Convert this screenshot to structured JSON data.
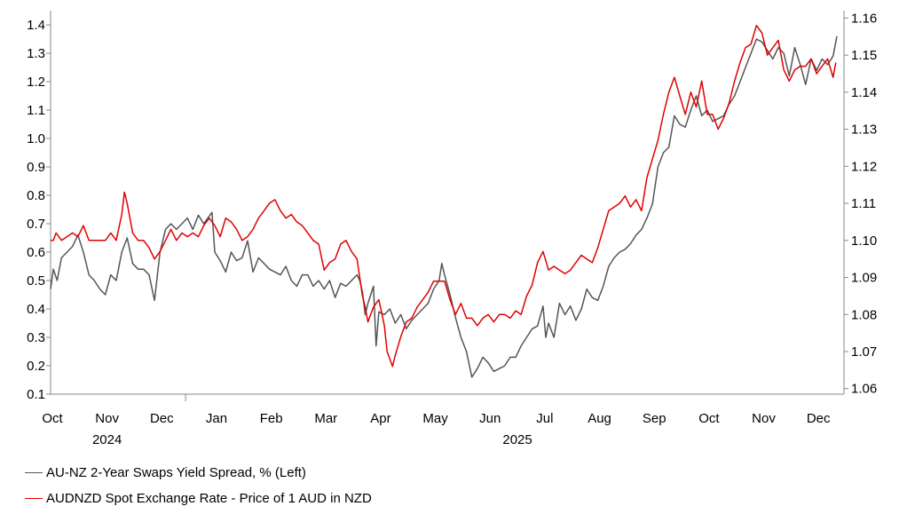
{
  "chart_data": {
    "type": "line",
    "x_tick_labels": [
      "Oct",
      "Nov",
      "Dec",
      "Jan",
      "Feb",
      "Mar",
      "Apr",
      "May",
      "Jun",
      "Jul",
      "Aug",
      "Sep",
      "Oct",
      "Nov",
      "Dec"
    ],
    "year_labels": [
      "2024",
      "2025"
    ],
    "left_ticks": [
      "0.1",
      "0.2",
      "0.3",
      "0.4",
      "0.5",
      "0.6",
      "0.7",
      "0.8",
      "0.9",
      "1.0",
      "1.1",
      "1.2",
      "1.3",
      "1.4"
    ],
    "right_ticks": [
      "1.06",
      "1.07",
      "1.08",
      "1.09",
      "1.10",
      "1.11",
      "1.12",
      "1.13",
      "1.14",
      "1.15",
      "1.16"
    ],
    "ylim_left": [
      0.1,
      1.45
    ],
    "ylim_right": [
      1.0585,
      1.162
    ],
    "x_month_index_range": [
      0,
      14.5
    ],
    "series": [
      {
        "name": "AU-NZ 2-Year Swaps Yield Spread, % (Left)",
        "axis": "left",
        "color": "#555555",
        "points": [
          [
            0,
            0.47
          ],
          [
            0.05,
            0.54
          ],
          [
            0.12,
            0.5
          ],
          [
            0.2,
            0.58
          ],
          [
            0.3,
            0.6
          ],
          [
            0.4,
            0.62
          ],
          [
            0.5,
            0.66
          ],
          [
            0.6,
            0.6
          ],
          [
            0.7,
            0.52
          ],
          [
            0.8,
            0.5
          ],
          [
            0.9,
            0.47
          ],
          [
            1.0,
            0.45
          ],
          [
            1.1,
            0.52
          ],
          [
            1.2,
            0.5
          ],
          [
            1.3,
            0.6
          ],
          [
            1.4,
            0.65
          ],
          [
            1.5,
            0.56
          ],
          [
            1.6,
            0.54
          ],
          [
            1.7,
            0.54
          ],
          [
            1.8,
            0.52
          ],
          [
            1.9,
            0.43
          ],
          [
            2.0,
            0.6
          ],
          [
            2.1,
            0.68
          ],
          [
            2.2,
            0.7
          ],
          [
            2.3,
            0.68
          ],
          [
            2.4,
            0.7
          ],
          [
            2.5,
            0.72
          ],
          [
            2.6,
            0.68
          ],
          [
            2.7,
            0.73
          ],
          [
            2.8,
            0.7
          ],
          [
            2.95,
            0.74
          ],
          [
            3.0,
            0.6
          ],
          [
            3.1,
            0.57
          ],
          [
            3.2,
            0.53
          ],
          [
            3.3,
            0.6
          ],
          [
            3.4,
            0.57
          ],
          [
            3.5,
            0.58
          ],
          [
            3.6,
            0.64
          ],
          [
            3.7,
            0.53
          ],
          [
            3.8,
            0.58
          ],
          [
            3.9,
            0.56
          ],
          [
            4.0,
            0.54
          ],
          [
            4.1,
            0.53
          ],
          [
            4.2,
            0.52
          ],
          [
            4.3,
            0.55
          ],
          [
            4.4,
            0.5
          ],
          [
            4.5,
            0.48
          ],
          [
            4.6,
            0.52
          ],
          [
            4.7,
            0.52
          ],
          [
            4.8,
            0.48
          ],
          [
            4.9,
            0.5
          ],
          [
            5.0,
            0.47
          ],
          [
            5.1,
            0.5
          ],
          [
            5.2,
            0.44
          ],
          [
            5.3,
            0.49
          ],
          [
            5.4,
            0.48
          ],
          [
            5.5,
            0.5
          ],
          [
            5.6,
            0.52
          ],
          [
            5.65,
            0.5
          ],
          [
            5.7,
            0.46
          ],
          [
            5.75,
            0.38
          ],
          [
            5.8,
            0.42
          ],
          [
            5.9,
            0.48
          ],
          [
            5.95,
            0.27
          ],
          [
            6.0,
            0.39
          ],
          [
            6.1,
            0.38
          ],
          [
            6.2,
            0.4
          ],
          [
            6.3,
            0.35
          ],
          [
            6.4,
            0.38
          ],
          [
            6.5,
            0.33
          ],
          [
            6.6,
            0.36
          ],
          [
            6.7,
            0.38
          ],
          [
            6.8,
            0.4
          ],
          [
            6.9,
            0.42
          ],
          [
            7.0,
            0.47
          ],
          [
            7.1,
            0.5
          ],
          [
            7.15,
            0.56
          ],
          [
            7.2,
            0.52
          ],
          [
            7.3,
            0.45
          ],
          [
            7.4,
            0.37
          ],
          [
            7.5,
            0.3
          ],
          [
            7.6,
            0.25
          ],
          [
            7.7,
            0.16
          ],
          [
            7.8,
            0.19
          ],
          [
            7.9,
            0.23
          ],
          [
            8.0,
            0.21
          ],
          [
            8.1,
            0.18
          ],
          [
            8.2,
            0.19
          ],
          [
            8.3,
            0.2
          ],
          [
            8.4,
            0.23
          ],
          [
            8.5,
            0.23
          ],
          [
            8.6,
            0.27
          ],
          [
            8.7,
            0.3
          ],
          [
            8.8,
            0.33
          ],
          [
            8.9,
            0.34
          ],
          [
            9.0,
            0.41
          ],
          [
            9.05,
            0.3
          ],
          [
            9.1,
            0.35
          ],
          [
            9.2,
            0.3
          ],
          [
            9.3,
            0.42
          ],
          [
            9.4,
            0.38
          ],
          [
            9.5,
            0.41
          ],
          [
            9.6,
            0.36
          ],
          [
            9.7,
            0.4
          ],
          [
            9.8,
            0.47
          ],
          [
            9.9,
            0.44
          ],
          [
            10.0,
            0.43
          ],
          [
            10.1,
            0.48
          ],
          [
            10.2,
            0.55
          ],
          [
            10.3,
            0.58
          ],
          [
            10.4,
            0.6
          ],
          [
            10.5,
            0.61
          ],
          [
            10.6,
            0.63
          ],
          [
            10.7,
            0.66
          ],
          [
            10.8,
            0.68
          ],
          [
            10.9,
            0.72
          ],
          [
            11.0,
            0.77
          ],
          [
            11.1,
            0.9
          ],
          [
            11.2,
            0.95
          ],
          [
            11.3,
            0.97
          ],
          [
            11.4,
            1.08
          ],
          [
            11.5,
            1.05
          ],
          [
            11.6,
            1.04
          ],
          [
            11.7,
            1.1
          ],
          [
            11.8,
            1.15
          ],
          [
            11.9,
            1.08
          ],
          [
            12.0,
            1.1
          ],
          [
            12.1,
            1.06
          ],
          [
            12.2,
            1.07
          ],
          [
            12.3,
            1.08
          ],
          [
            12.4,
            1.12
          ],
          [
            12.5,
            1.15
          ],
          [
            12.6,
            1.2
          ],
          [
            12.7,
            1.25
          ],
          [
            12.8,
            1.3
          ],
          [
            12.9,
            1.35
          ],
          [
            13.0,
            1.34
          ],
          [
            13.1,
            1.31
          ],
          [
            13.2,
            1.28
          ],
          [
            13.3,
            1.32
          ],
          [
            13.4,
            1.3
          ],
          [
            13.5,
            1.22
          ],
          [
            13.6,
            1.32
          ],
          [
            13.7,
            1.26
          ],
          [
            13.8,
            1.19
          ],
          [
            13.9,
            1.28
          ],
          [
            14.0,
            1.24
          ],
          [
            14.1,
            1.28
          ],
          [
            14.2,
            1.26
          ],
          [
            14.3,
            1.29
          ],
          [
            14.37,
            1.36
          ]
        ]
      },
      {
        "name": "AUDNZD Spot Exchange Rate - Price of 1 AUD in NZD",
        "axis": "right",
        "color": "#e00000",
        "points": [
          [
            0,
            1.1
          ],
          [
            0.05,
            1.1
          ],
          [
            0.1,
            1.102
          ],
          [
            0.2,
            1.1
          ],
          [
            0.3,
            1.101
          ],
          [
            0.4,
            1.102
          ],
          [
            0.5,
            1.101
          ],
          [
            0.6,
            1.104
          ],
          [
            0.7,
            1.1
          ],
          [
            0.8,
            1.1
          ],
          [
            0.9,
            1.1
          ],
          [
            1.0,
            1.1
          ],
          [
            1.1,
            1.102
          ],
          [
            1.2,
            1.1
          ],
          [
            1.3,
            1.107
          ],
          [
            1.35,
            1.113
          ],
          [
            1.4,
            1.11
          ],
          [
            1.5,
            1.102
          ],
          [
            1.6,
            1.1
          ],
          [
            1.7,
            1.1
          ],
          [
            1.8,
            1.098
          ],
          [
            1.9,
            1.095
          ],
          [
            2.0,
            1.097
          ],
          [
            2.1,
            1.1
          ],
          [
            2.2,
            1.103
          ],
          [
            2.3,
            1.1
          ],
          [
            2.4,
            1.102
          ],
          [
            2.5,
            1.101
          ],
          [
            2.6,
            1.102
          ],
          [
            2.7,
            1.101
          ],
          [
            2.8,
            1.104
          ],
          [
            2.9,
            1.106
          ],
          [
            3.0,
            1.104
          ],
          [
            3.1,
            1.101
          ],
          [
            3.2,
            1.106
          ],
          [
            3.3,
            1.105
          ],
          [
            3.4,
            1.103
          ],
          [
            3.5,
            1.1
          ],
          [
            3.6,
            1.101
          ],
          [
            3.7,
            1.103
          ],
          [
            3.8,
            1.106
          ],
          [
            3.9,
            1.108
          ],
          [
            4.0,
            1.11
          ],
          [
            4.1,
            1.111
          ],
          [
            4.2,
            1.108
          ],
          [
            4.3,
            1.106
          ],
          [
            4.4,
            1.107
          ],
          [
            4.5,
            1.105
          ],
          [
            4.6,
            1.104
          ],
          [
            4.7,
            1.102
          ],
          [
            4.8,
            1.1
          ],
          [
            4.9,
            1.099
          ],
          [
            5.0,
            1.092
          ],
          [
            5.1,
            1.094
          ],
          [
            5.2,
            1.095
          ],
          [
            5.3,
            1.099
          ],
          [
            5.4,
            1.1
          ],
          [
            5.5,
            1.097
          ],
          [
            5.6,
            1.095
          ],
          [
            5.7,
            1.085
          ],
          [
            5.75,
            1.082
          ],
          [
            5.8,
            1.078
          ],
          [
            5.9,
            1.082
          ],
          [
            6.0,
            1.084
          ],
          [
            6.1,
            1.077
          ],
          [
            6.15,
            1.07
          ],
          [
            6.25,
            1.066
          ],
          [
            6.3,
            1.069
          ],
          [
            6.4,
            1.074
          ],
          [
            6.5,
            1.078
          ],
          [
            6.6,
            1.079
          ],
          [
            6.7,
            1.082
          ],
          [
            6.8,
            1.084
          ],
          [
            6.9,
            1.086
          ],
          [
            7.0,
            1.089
          ],
          [
            7.1,
            1.089
          ],
          [
            7.2,
            1.089
          ],
          [
            7.3,
            1.084
          ],
          [
            7.4,
            1.08
          ],
          [
            7.5,
            1.083
          ],
          [
            7.6,
            1.079
          ],
          [
            7.7,
            1.079
          ],
          [
            7.8,
            1.077
          ],
          [
            7.9,
            1.079
          ],
          [
            8.0,
            1.08
          ],
          [
            8.1,
            1.078
          ],
          [
            8.2,
            1.08
          ],
          [
            8.3,
            1.08
          ],
          [
            8.4,
            1.079
          ],
          [
            8.5,
            1.081
          ],
          [
            8.6,
            1.08
          ],
          [
            8.7,
            1.085
          ],
          [
            8.8,
            1.088
          ],
          [
            8.9,
            1.094
          ],
          [
            9.0,
            1.097
          ],
          [
            9.1,
            1.092
          ],
          [
            9.2,
            1.093
          ],
          [
            9.3,
            1.092
          ],
          [
            9.4,
            1.091
          ],
          [
            9.5,
            1.092
          ],
          [
            9.6,
            1.094
          ],
          [
            9.7,
            1.096
          ],
          [
            9.8,
            1.095
          ],
          [
            9.9,
            1.094
          ],
          [
            10.0,
            1.098
          ],
          [
            10.1,
            1.103
          ],
          [
            10.2,
            1.108
          ],
          [
            10.3,
            1.109
          ],
          [
            10.4,
            1.11
          ],
          [
            10.5,
            1.112
          ],
          [
            10.6,
            1.109
          ],
          [
            10.7,
            1.111
          ],
          [
            10.8,
            1.108
          ],
          [
            10.9,
            1.117
          ],
          [
            11.0,
            1.122
          ],
          [
            11.1,
            1.127
          ],
          [
            11.2,
            1.134
          ],
          [
            11.3,
            1.14
          ],
          [
            11.4,
            1.144
          ],
          [
            11.5,
            1.139
          ],
          [
            11.6,
            1.134
          ],
          [
            11.7,
            1.14
          ],
          [
            11.8,
            1.136
          ],
          [
            11.9,
            1.143
          ],
          [
            12.0,
            1.134
          ],
          [
            12.1,
            1.134
          ],
          [
            12.2,
            1.13
          ],
          [
            12.3,
            1.133
          ],
          [
            12.4,
            1.137
          ],
          [
            12.5,
            1.143
          ],
          [
            12.6,
            1.148
          ],
          [
            12.7,
            1.152
          ],
          [
            12.8,
            1.153
          ],
          [
            12.9,
            1.158
          ],
          [
            13.0,
            1.156
          ],
          [
            13.1,
            1.15
          ],
          [
            13.2,
            1.152
          ],
          [
            13.3,
            1.154
          ],
          [
            13.4,
            1.146
          ],
          [
            13.5,
            1.143
          ],
          [
            13.6,
            1.146
          ],
          [
            13.7,
            1.147
          ],
          [
            13.8,
            1.147
          ],
          [
            13.9,
            1.149
          ],
          [
            14.0,
            1.145
          ],
          [
            14.1,
            1.147
          ],
          [
            14.2,
            1.149
          ],
          [
            14.3,
            1.144
          ],
          [
            14.35,
            1.148
          ]
        ]
      }
    ]
  }
}
